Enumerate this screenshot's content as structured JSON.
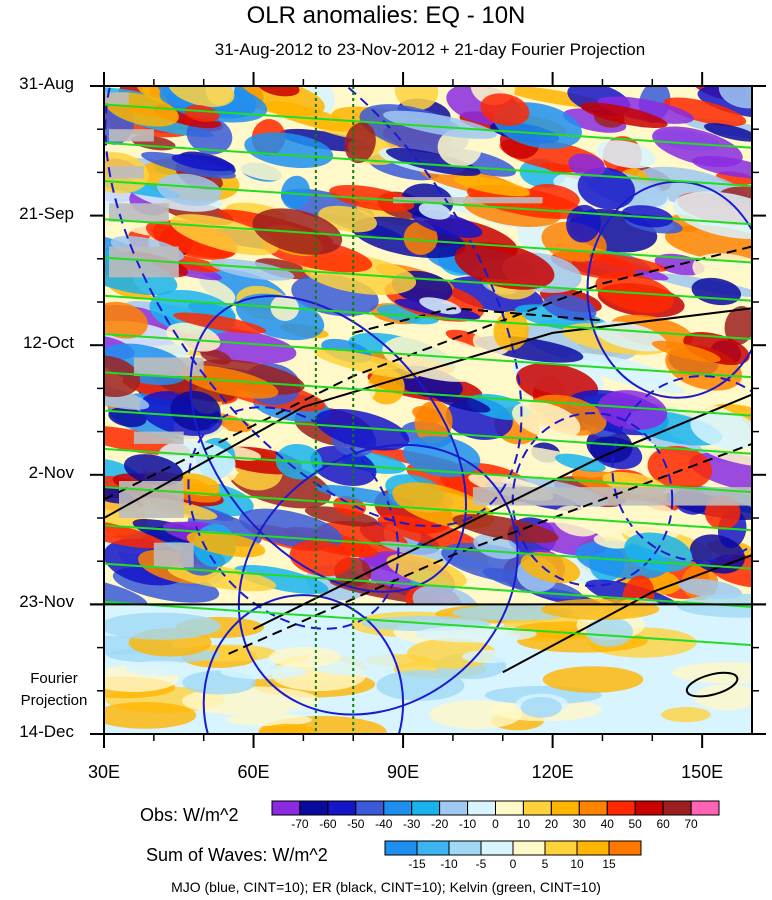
{
  "chart_data": {
    "type": "heatmap",
    "title": "OLR anomalies: EQ - 10N",
    "subtitle": "31-Aug-2012 to 23-Nov-2012 + 21-day Fourier Projection",
    "x_ticks": [
      "30E",
      "60E",
      "90E",
      "120E",
      "150E"
    ],
    "x_values": [
      30,
      60,
      90,
      120,
      150
    ],
    "x_range": [
      30,
      160
    ],
    "y_ticks": [
      "31-Aug",
      "21-Sep",
      "12-Oct",
      "2-Nov",
      "23-Nov",
      "14-Dec"
    ],
    "y_day_offsets": [
      0,
      21,
      42,
      63,
      84,
      105
    ],
    "y_range_days": [
      0,
      105
    ],
    "projection_start_day": 84,
    "projection_label": "Fourier Projection",
    "reference_lines_lon": [
      72.5,
      80
    ],
    "obs_legend": {
      "label": "Obs: W/m^2",
      "levels": [
        "-70",
        "-60",
        "-50",
        "-40",
        "-30",
        "-20",
        "-10",
        "0",
        "10",
        "20",
        "30",
        "40",
        "50",
        "60",
        "70"
      ],
      "colors": [
        "#8a2be2",
        "#0a0aa0",
        "#1414c8",
        "#3a5ad8",
        "#1e8ff0",
        "#19b4ee",
        "#a0c8f0",
        "#d8f4ff",
        "#fff8c8",
        "#ffd23c",
        "#ffb400",
        "#ff8200",
        "#ff2800",
        "#c80000",
        "#9c2020",
        "#ff64b4"
      ]
    },
    "waves_legend": {
      "label": "Sum of Waves: W/m^2",
      "levels": [
        "-15",
        "-10",
        "-5",
        "0",
        "5",
        "10",
        "15"
      ],
      "colors": [
        "#1e8ff0",
        "#3cb4f0",
        "#a0d8f5",
        "#d8f4ff",
        "#fff8c8",
        "#ffd23c",
        "#ffb400",
        "#ff7800"
      ]
    },
    "contour_series": [
      {
        "name": "MJO",
        "color": "blue",
        "cint": 10
      },
      {
        "name": "ER",
        "color": "black",
        "cint": 10
      },
      {
        "name": "Kelvin",
        "color": "green",
        "cint": 10
      }
    ],
    "footer": "MJO (blue, CINT=10); ER (black, CINT=10); Kelvin (green, CINT=10)"
  }
}
